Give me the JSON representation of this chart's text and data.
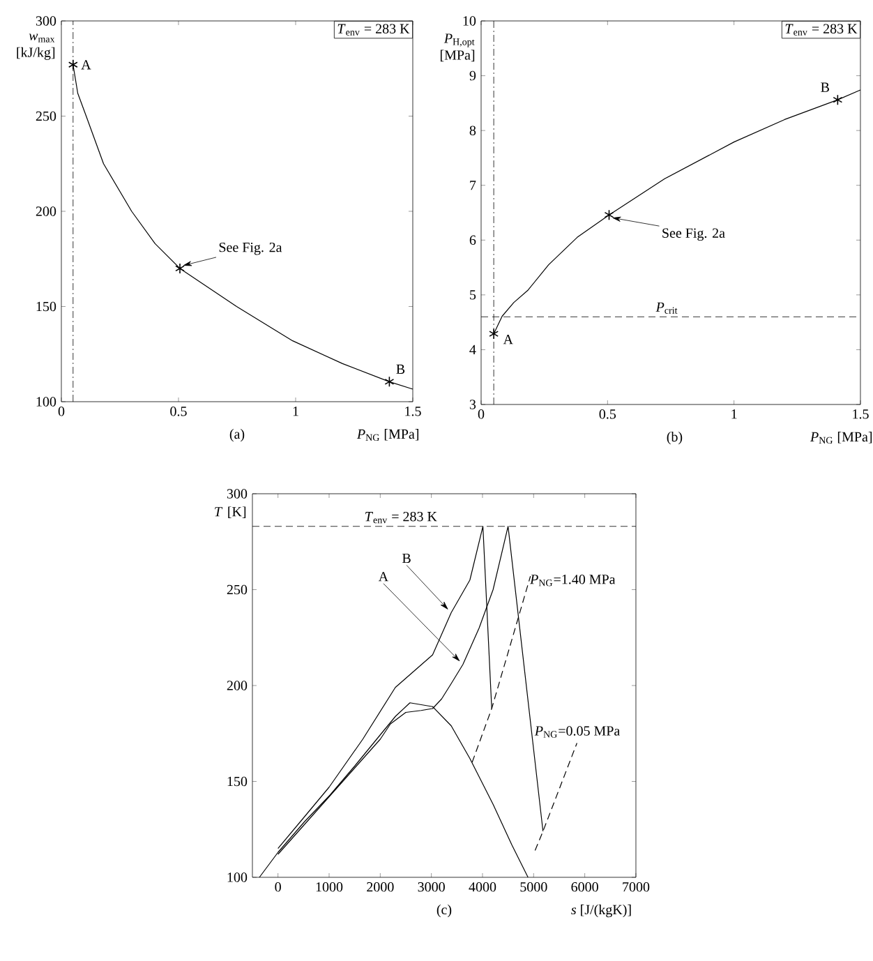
{
  "chart_data": [
    {
      "type": "line",
      "xlabel": "*P*$_{NG}$ [MPa]",
      "ylabel": "*w*$_{max}$ [kJ/kg]",
      "xlim": [
        0,
        1.5
      ],
      "ylim": [
        100,
        300
      ],
      "xticks": [
        0,
        0.5,
        1,
        1.5
      ],
      "yticks": [
        100,
        150,
        200,
        250,
        300
      ],
      "series": [
        {
          "color": "#000000",
          "x": [
            0.05,
            0.07,
            0.106,
            0.18,
            0.3,
            0.4,
            0.506,
            0.748,
            0.987,
            1.2,
            1.4,
            1.5
          ],
          "values": [
            277,
            262,
            250,
            225,
            200,
            183,
            170,
            150,
            132,
            120,
            110.5,
            106.6
          ]
        },
        {
          "type": "scatter",
          "marker": "cross",
          "color": "#000000",
          "x": [
            0.05,
            0.506,
            1.4
          ],
          "values": [
            277,
            170,
            110.5
          ]
        }
      ],
      "ref_lines": [
        {
          "axis": "x",
          "value": 0.05,
          "line_style": "dashdot",
          "color": "#000000"
        }
      ],
      "annotations": [
        "*T*$_{env}$ = 283 K",
        {
          "text": "A",
          "x": 0.05,
          "y": 277
        },
        {
          "text": "See Fig. 2a",
          "x": 0.506,
          "y": 170
        },
        {
          "text": "B",
          "x": 1.4,
          "y": 110.5
        },
        "(a)"
      ]
    },
    {
      "type": "line",
      "xlabel": "*P*$_{NG}$ [MPa]",
      "ylabel": "*P*$_{H,opt}$ [MPa]",
      "xlim": [
        0,
        1.5
      ],
      "ylim": [
        3,
        10
      ],
      "xticks": [
        0,
        0.5,
        1,
        1.5
      ],
      "yticks": [
        3,
        4,
        5,
        6,
        7,
        8,
        9,
        10
      ],
      "series": [
        {
          "color": "#000000",
          "x": [
            0.05,
            0.083,
            0.129,
            0.184,
            0.267,
            0.38,
            0.506,
            0.726,
            1.0,
            1.2,
            1.41,
            1.5
          ],
          "values": [
            4.29,
            4.61,
            4.86,
            5.08,
            5.55,
            6.05,
            6.46,
            7.12,
            7.79,
            8.2,
            8.56,
            8.74
          ]
        },
        {
          "type": "scatter",
          "marker": "cross",
          "color": "#000000",
          "x": [
            0.05,
            0.506,
            1.41
          ],
          "values": [
            4.29,
            6.46,
            8.56
          ]
        }
      ],
      "ref_lines": [
        {
          "axis": "x",
          "value": 0.05,
          "line_style": "dashdot",
          "color": "#000000"
        },
        {
          "axis": "y",
          "value": 4.6,
          "line_style": "dashed",
          "color": "#000000",
          "label": "*P*$_{crit}$"
        }
      ],
      "annotations": [
        "*T*$_{env}$ = 283 K",
        {
          "text": "A",
          "x": 0.05,
          "y": 4.29
        },
        {
          "text": "See Fig. 2a",
          "x": 0.506,
          "y": 6.46
        },
        {
          "text": "B",
          "x": 1.41,
          "y": 8.56
        },
        "(b)"
      ]
    },
    {
      "type": "line",
      "xlabel": "*s* [J/(kgK)]",
      "ylabel": "*T* [K]",
      "xlim": [
        -500,
        7000
      ],
      "ylim": [
        100,
        300
      ],
      "xticks": [
        0,
        1000,
        2000,
        3000,
        4000,
        5000,
        6000,
        7000
      ],
      "yticks": [
        100,
        150,
        200,
        250,
        300
      ],
      "series": [
        {
          "color": "#000000",
          "x": [
            -363,
            0,
            519,
            1021,
            1500,
            2022,
            2300,
            2581,
            3024,
            3388,
            3752,
            4208,
            4572,
            4890
          ],
          "values": [
            100,
            113,
            129,
            143,
            158,
            175,
            184,
            191,
            189,
            179,
            162,
            138,
            117,
            100
          ]
        },
        {
          "color": "#000000",
          "x": [
            0,
            500,
            1000,
            1500,
            2000,
            2200,
            2500,
            2800,
            3024,
            3200,
            3388,
            3617,
            3934,
            4207,
            4500,
            5183
          ],
          "values": [
            112,
            127,
            142,
            157,
            172,
            180,
            186,
            187,
            188,
            193,
            201,
            211,
            230,
            250,
            283,
            124
          ]
        },
        {
          "color": "#000000",
          "x": [
            0,
            500,
            1000,
            1658,
            2295,
            3024,
            3388,
            3753,
            4008,
            4180
          ],
          "values": [
            115,
            131,
            147,
            172,
            199,
            216,
            238,
            255,
            283,
            188
          ]
        },
        {
          "line_style": "dashed",
          "color": "#000000",
          "x": [
            3798,
            4180,
            4937
          ],
          "values": [
            160,
            188,
            257
          ]
        },
        {
          "line_style": "dashed",
          "color": "#000000",
          "x": [
            5028,
            5183,
            5847
          ],
          "values": [
            114,
            124,
            170
          ]
        }
      ],
      "ref_lines": [
        {
          "axis": "y",
          "value": 283,
          "line_style": "dashed",
          "color": "#000000",
          "label": "*T*$_{env}$ = 283 K"
        }
      ],
      "annotations": [
        {
          "text": "A",
          "x": 3617,
          "y": 211
        },
        {
          "text": "B",
          "x": 3388,
          "y": 238
        },
        {
          "text": "*P*$_{NG}$=1.40 MPa",
          "x": 4937,
          "y": 257
        },
        {
          "text": "*P*$_{NG}$=0.05 MPa",
          "x": 5847,
          "y": 170
        },
        "(c)"
      ]
    }
  ]
}
